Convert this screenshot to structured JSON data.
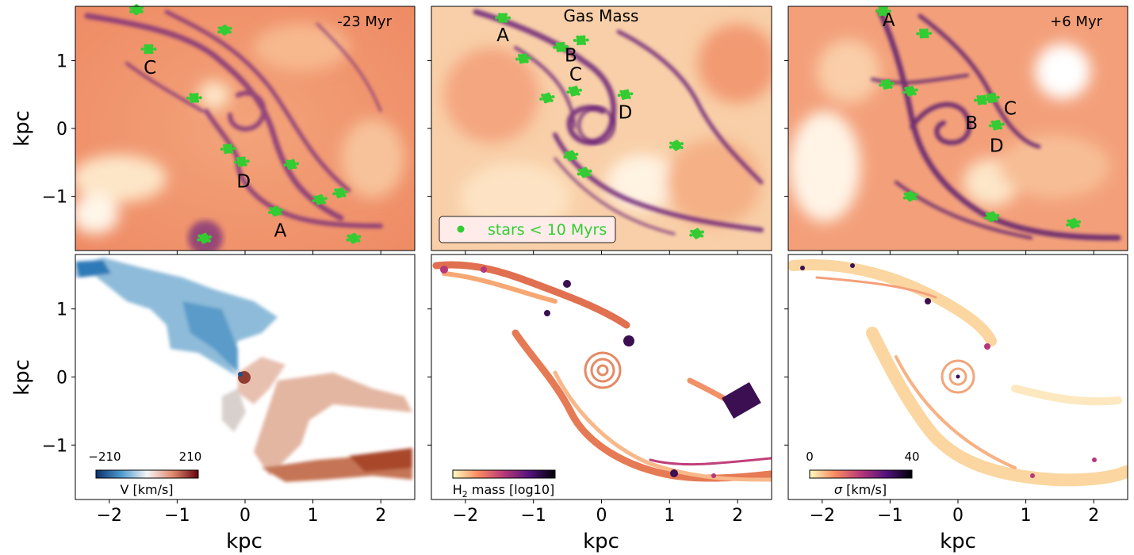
{
  "figure": {
    "xlabel": "kpc",
    "ylabel": "kpc",
    "xlim": [
      -2.5,
      2.5
    ],
    "ylim": [
      -1.8,
      1.8
    ],
    "xticks": [
      -2,
      -1,
      0,
      1,
      2
    ],
    "xtick_labels": [
      "−2",
      "−1",
      "0",
      "1",
      "2"
    ],
    "yticks": [
      1,
      0,
      -1
    ],
    "ytick_labels": [
      "1",
      "0",
      "−1"
    ]
  },
  "colors": {
    "stars": "#33cc33",
    "gas_light": "#fbdcb9",
    "gas_mid": "#f08a60",
    "gas_dark": "#5a1f6e",
    "velocity_neg": "#1f6fb0",
    "velocity_pos": "#9a2a10"
  },
  "chart_data": [
    {
      "type": "heatmap",
      "panel": "top-left",
      "quantity": "gas mass",
      "annotation": "-23 Myr",
      "star_labels": [
        {
          "name": "C",
          "x": -1.4,
          "y": 0.9
        },
        {
          "name": "D",
          "x": -0.02,
          "y": -0.78
        },
        {
          "name": "A",
          "x": 0.52,
          "y": -1.5
        }
      ],
      "star_clumps": [
        {
          "x": -1.42,
          "y": 1.17
        },
        {
          "x": -0.75,
          "y": 0.45
        },
        {
          "x": -0.25,
          "y": -0.3
        },
        {
          "x": -0.05,
          "y": -0.49
        },
        {
          "x": 0.68,
          "y": -0.53
        },
        {
          "x": 1.4,
          "y": -0.95
        },
        {
          "x": 1.1,
          "y": -1.05
        },
        {
          "x": 0.45,
          "y": -1.22
        },
        {
          "x": -0.6,
          "y": -1.62
        },
        {
          "x": 1.6,
          "y": -1.62
        },
        {
          "x": -0.3,
          "y": 1.45
        },
        {
          "x": -1.6,
          "y": 1.75
        }
      ]
    },
    {
      "type": "heatmap",
      "panel": "top-middle",
      "quantity": "gas mass",
      "title": "Gas Mass",
      "legend": {
        "label": "stars < 10 Myrs",
        "loc": "lower-left"
      },
      "star_labels": [
        {
          "name": "A",
          "x": -1.45,
          "y": 1.38
        },
        {
          "name": "B",
          "x": -0.45,
          "y": 1.08
        },
        {
          "name": "C",
          "x": -0.38,
          "y": 0.8
        },
        {
          "name": "D",
          "x": 0.35,
          "y": 0.24
        }
      ],
      "star_clumps": [
        {
          "x": -1.45,
          "y": 1.63
        },
        {
          "x": -0.3,
          "y": 1.3
        },
        {
          "x": -0.6,
          "y": 1.2
        },
        {
          "x": -1.15,
          "y": 1.03
        },
        {
          "x": 0.35,
          "y": 0.5
        },
        {
          "x": -0.4,
          "y": 0.55
        },
        {
          "x": -0.8,
          "y": 0.45
        },
        {
          "x": -0.45,
          "y": -0.4
        },
        {
          "x": -0.25,
          "y": -0.65
        },
        {
          "x": 1.4,
          "y": -1.55
        },
        {
          "x": 1.1,
          "y": -0.25
        }
      ]
    },
    {
      "type": "heatmap",
      "panel": "top-right",
      "quantity": "gas mass",
      "annotation": "+6 Myr",
      "star_labels": [
        {
          "name": "A",
          "x": -1.02,
          "y": 1.6
        },
        {
          "name": "B",
          "x": 0.2,
          "y": 0.08
        },
        {
          "name": "C",
          "x": 0.77,
          "y": 0.3
        },
        {
          "name": "D",
          "x": 0.57,
          "y": -0.25
        }
      ],
      "star_clumps": [
        {
          "x": -1.1,
          "y": 1.73
        },
        {
          "x": -0.5,
          "y": 1.4
        },
        {
          "x": 0.35,
          "y": 0.42
        },
        {
          "x": 0.5,
          "y": 0.45
        },
        {
          "x": 0.57,
          "y": 0.05
        },
        {
          "x": -1.05,
          "y": 0.65
        },
        {
          "x": -0.7,
          "y": 0.55
        },
        {
          "x": 0.5,
          "y": -1.3
        },
        {
          "x": 1.7,
          "y": -1.4
        },
        {
          "x": -0.7,
          "y": -1.0
        }
      ]
    },
    {
      "type": "heatmap",
      "panel": "bottom-left",
      "quantity": "velocity",
      "colorbar": {
        "label": "V [km/s]",
        "min_label": "−210",
        "max_label": "210",
        "vmin": -210,
        "vmax": 210
      }
    },
    {
      "type": "heatmap",
      "panel": "bottom-middle",
      "quantity": "H2 mass",
      "colorbar": {
        "label_main": "H",
        "label_sub": "2",
        "label_rest": " mass [log10]"
      }
    },
    {
      "type": "heatmap",
      "panel": "bottom-right",
      "quantity": "velocity dispersion",
      "colorbar": {
        "label_symbol": "σ",
        "label_rest": " [km/s]",
        "min_label": "0",
        "max_label": "40",
        "vmin": 0,
        "vmax": 40
      }
    }
  ]
}
